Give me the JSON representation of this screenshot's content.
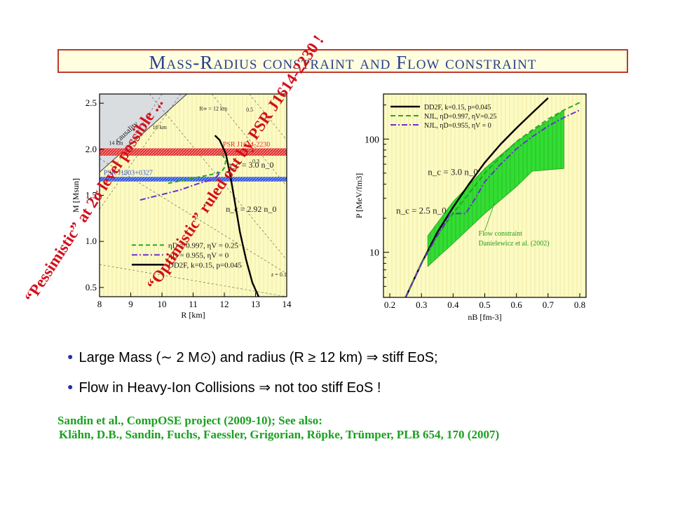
{
  "title": "Mass-Radius constraint and Flow constraint",
  "overlays": {
    "pessimistic": "“Pessimistic” at 2σ level possible ...",
    "optimistic": "“Optimistic” ruled out by PSR J1614-2230 !"
  },
  "bullets": [
    "Large Mass (∼ 2 M⊙) and radius (R ≥ 12 km) ⇒ stiff EoS;",
    "Flow in Heavy-Ion Collisions ⇒ not too stiff EoS !"
  ],
  "references": [
    "Sandin et al., CompOSE project (2009-10); See also:",
    "Klähn, D.B., Sandin, Fuchs, Faessler, Grigorian, Röpke, Trümper, PLB 654, 170 (2007)"
  ],
  "colors": {
    "plot_bg": "#fdfbc4",
    "grid": "#e6df8a",
    "psr_red": "#e03030",
    "psr_blue": "#3355dd",
    "flow_green": "#33dd33",
    "green_curve": "#22aa22",
    "violet_curve": "#6633cc",
    "title_text": "#2a3f8f",
    "overlay_red": "#d4101c"
  },
  "chart_data": [
    {
      "type": "line",
      "xlabel": "R [km]",
      "ylabel": "M [Msun]",
      "xlim": [
        8,
        14
      ],
      "ylim": [
        0.4,
        2.6
      ],
      "xticks": [
        8,
        9,
        10,
        11,
        12,
        13,
        14
      ],
      "yticks": [
        0.5,
        1.0,
        1.5,
        2.0,
        2.5
      ],
      "regions": [
        {
          "name": "causality",
          "type": "excluded-triangle"
        },
        {
          "name": "PSR J1614-2230",
          "mass_range": [
            1.93,
            2.01
          ]
        },
        {
          "name": "PSR J1903+0327",
          "mass_range": [
            1.65,
            1.7
          ]
        }
      ],
      "annotations": [
        "causality",
        "PSR J1614-2230",
        "PSR J1903+0327",
        "n_c = 3.0 n_0",
        "n_c = 2.92 n_0",
        "R∞ = 12 km",
        "16 km",
        "14 km",
        "0.5",
        "0.3",
        "z = 0.1"
      ],
      "legend": {
        "position": "bottom-left",
        "entries": [
          "ηD = 0.997, ηV = 0.25",
          "ηD = 0.955, ηV = 0",
          "DD2F, k=0.15, p=0.045"
        ]
      },
      "series": [
        {
          "name": "DD2F, k=0.15, p=0.045",
          "points": [
            [
              13.1,
              0.4
            ],
            [
              12.9,
              0.55
            ],
            [
              12.7,
              0.8
            ],
            [
              12.5,
              1.1
            ],
            [
              12.35,
              1.4
            ],
            [
              12.2,
              1.7
            ],
            [
              12.05,
              1.95
            ],
            [
              11.85,
              2.1
            ],
            [
              11.7,
              2.15
            ]
          ]
        },
        {
          "name": "ηD = 0.997, ηV = 0.25",
          "points": [
            [
              10.2,
              1.63
            ],
            [
              10.9,
              1.68
            ],
            [
              11.5,
              1.72
            ],
            [
              11.9,
              1.75
            ],
            [
              12.0,
              1.8
            ],
            [
              12.05,
              1.88
            ],
            [
              11.95,
              1.93
            ],
            [
              11.8,
              1.95
            ]
          ]
        },
        {
          "name": "ηD = 0.955, ηV = 0",
          "points": [
            [
              9.3,
              1.45
            ],
            [
              9.9,
              1.5
            ],
            [
              10.6,
              1.56
            ],
            [
              11.1,
              1.62
            ],
            [
              11.5,
              1.66
            ],
            [
              11.75,
              1.7
            ],
            [
              11.85,
              1.74
            ],
            [
              11.75,
              1.76
            ]
          ]
        }
      ]
    },
    {
      "type": "line",
      "xlabel": "nB [fm-3]",
      "ylabel": "P [MeV/fm3]",
      "xscale": "linear",
      "yscale": "log",
      "xlim": [
        0.18,
        0.82
      ],
      "ylim": [
        4,
        250
      ],
      "xticks": [
        0.2,
        0.3,
        0.4,
        0.5,
        0.6,
        0.7,
        0.8
      ],
      "yticks": [
        10,
        100
      ],
      "annotations": [
        "n_c = 3.0 n_0",
        "n_c = 2.5 n_0",
        "Flow constraint",
        "Danielewicz et al. (2002)"
      ],
      "legend": {
        "position": "top-left",
        "entries": [
          "DD2F, k=0.15, p=0.045",
          "NJL, ηD=0.997, ηV=0.25",
          "NJL, ηD=0.955, ηV = 0"
        ]
      },
      "flow_band": {
        "name": "Flow constraint",
        "upper": [
          [
            0.32,
            14
          ],
          [
            0.4,
            28
          ],
          [
            0.5,
            55
          ],
          [
            0.6,
            95
          ],
          [
            0.7,
            145
          ],
          [
            0.75,
            180
          ]
        ],
        "lower": [
          [
            0.32,
            7.5
          ],
          [
            0.4,
            12
          ],
          [
            0.5,
            22
          ],
          [
            0.6,
            38
          ],
          [
            0.65,
            52
          ],
          [
            0.75,
            55
          ]
        ]
      },
      "series": [
        {
          "name": "DD2F, k=0.15, p=0.045",
          "points": [
            [
              0.25,
              4
            ],
            [
              0.3,
              8
            ],
            [
              0.35,
              15
            ],
            [
              0.4,
              25
            ],
            [
              0.45,
              40
            ],
            [
              0.5,
              62
            ],
            [
              0.55,
              90
            ],
            [
              0.6,
              125
            ],
            [
              0.65,
              170
            ],
            [
              0.7,
              230
            ]
          ]
        },
        {
          "name": "NJL, ηD=0.997, ηV=0.25",
          "points": [
            [
              0.25,
              4
            ],
            [
              0.3,
              8
            ],
            [
              0.35,
              14
            ],
            [
              0.4,
              22
            ],
            [
              0.45,
              33
            ],
            [
              0.5,
              50
            ],
            [
              0.55,
              70
            ],
            [
              0.6,
              95
            ],
            [
              0.65,
              120
            ],
            [
              0.7,
              150
            ],
            [
              0.75,
              180
            ],
            [
              0.8,
              210
            ]
          ]
        },
        {
          "name": "NJL, ηD=0.955, ηV = 0",
          "points": [
            [
              0.25,
              4
            ],
            [
              0.3,
              8
            ],
            [
              0.35,
              14
            ],
            [
              0.38,
              19
            ],
            [
              0.39,
              22
            ],
            [
              0.42,
              22
            ],
            [
              0.44,
              22
            ],
            [
              0.47,
              30
            ],
            [
              0.5,
              42
            ],
            [
              0.55,
              60
            ],
            [
              0.6,
              82
            ],
            [
              0.65,
              105
            ],
            [
              0.7,
              130
            ],
            [
              0.75,
              155
            ],
            [
              0.8,
              180
            ]
          ]
        }
      ]
    }
  ]
}
